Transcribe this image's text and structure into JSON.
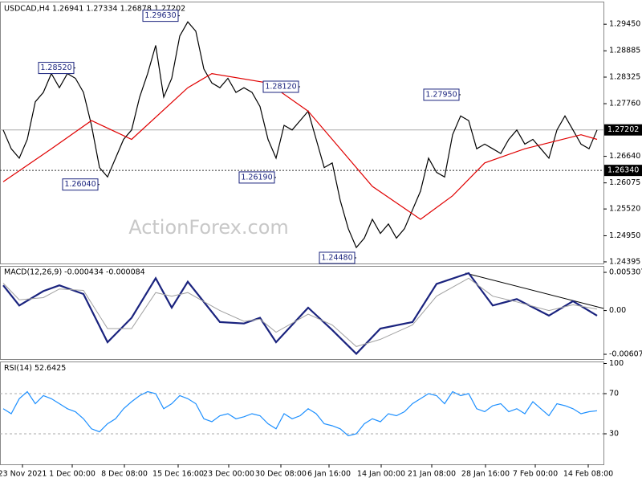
{
  "chart_data": [
    {
      "type": "line",
      "title": "USDCAD,H4 1.26941 1.27334 1.26878 1.27202",
      "watermark": "ActionForex.com",
      "xlim": [
        -0.4,
        74.8
      ],
      "ylim": [
        1.2436,
        1.2988
      ],
      "yticks": [
        {
          "value": 1.2945,
          "label": "1.29450"
        },
        1.28885,
        1.28325,
        {
          "value": 1.2776,
          "label": "1.27760"
        },
        {
          "value": 1.2664,
          "label": "1.26640"
        },
        1.26075,
        {
          "value": 1.2552,
          "label": "1.25520"
        },
        {
          "value": 1.2495,
          "label": "1.24950"
        },
        1.24395
      ],
      "price_lines": [
        {
          "value": 1.27202,
          "style": "solid"
        },
        {
          "value": 1.2634,
          "label": "1.26340",
          "style": "dotted"
        }
      ],
      "series": [
        {
          "color": "#000000",
          "values": [
            1.272,
            1.268,
            1.266,
            1.27,
            1.278,
            1.28,
            1.284,
            1.281,
            1.284,
            1.283,
            1.28,
            1.273,
            1.264,
            1.262,
            1.266,
            1.27,
            1.272,
            1.279,
            1.284,
            1.29,
            1.279,
            1.283,
            1.292,
            1.295,
            1.293,
            1.285,
            1.282,
            1.281,
            1.283,
            1.28,
            1.281,
            1.28,
            1.277,
            1.27,
            1.266,
            1.273,
            1.272,
            1.274,
            1.276,
            1.27,
            1.264,
            1.265,
            1.257,
            1.251,
            1.247,
            1.249,
            1.253,
            1.25,
            1.252,
            1.249,
            1.251,
            1.255,
            1.259,
            1.266,
            1.263,
            1.262,
            1.271,
            1.275,
            1.274,
            1.268,
            1.269,
            1.268,
            1.267,
            1.27,
            1.272,
            1.269,
            1.27,
            1.268,
            1.266,
            1.272,
            1.275,
            1.272,
            1.269,
            1.268,
            1.272
          ]
        },
        {
          "color": "#e00000",
          "x": [
            0,
            6,
            11,
            16,
            23,
            26,
            33,
            38,
            41,
            46,
            52,
            56,
            60,
            65,
            72,
            74
          ],
          "values": [
            1.261,
            1.268,
            1.274,
            1.27,
            1.281,
            1.284,
            1.282,
            1.276,
            1.27,
            1.26,
            1.253,
            1.258,
            1.265,
            1.268,
            1.271,
            1.27
          ]
        }
      ],
      "annotations": [
        {
          "label": "1.28520",
          "value": 1.2852,
          "x": 9
        },
        {
          "label": "1.29630",
          "value": 1.2963,
          "x": 22
        },
        {
          "label": "1.26040",
          "value": 1.2604,
          "x": 12
        },
        {
          "label": "1.28120",
          "value": 1.2812,
          "x": 37
        },
        {
          "label": "1.26190",
          "value": 1.2619,
          "x": 34
        },
        {
          "label": "1.27950",
          "value": 1.2795,
          "x": 57
        },
        {
          "label": "1.24480",
          "value": 1.2448,
          "x": 44
        }
      ]
    },
    {
      "type": "line",
      "title": "MACD(12,26,9) -0.000434 -0.000084",
      "xlim": [
        -0.4,
        74.8
      ],
      "ylim": [
        -0.00674,
        0.00598
      ],
      "yticks": [
        0.005307,
        {
          "value": 0,
          "label": "0.00"
        },
        -0.006074
      ],
      "series": [
        {
          "color": "#1a237e",
          "width": 2.2,
          "x": [
            0,
            2,
            5,
            7,
            10,
            13,
            16,
            19,
            21,
            23,
            27,
            30,
            32,
            34,
            38,
            41,
            44,
            47,
            51,
            54,
            58,
            61,
            64,
            68,
            71,
            74
          ],
          "values": [
            0.0035,
            0.0007,
            0.0027,
            0.0035,
            0.0023,
            -0.0044,
            -0.001,
            0.0045,
            0.0004,
            0.004,
            -0.0016,
            -0.0018,
            -0.001,
            -0.0044,
            0.0004,
            -0.0027,
            -0.006,
            -0.0025,
            -0.0016,
            0.0037,
            0.0052,
            0.0007,
            0.0016,
            -0.0007,
            0.0013,
            -0.0007
          ]
        },
        {
          "color": "#a0a0a0",
          "width": 1,
          "x": [
            0,
            2,
            5,
            7,
            10,
            13,
            16,
            19,
            21,
            23,
            27,
            30,
            32,
            34,
            38,
            41,
            44,
            47,
            51,
            54,
            58,
            61,
            64,
            68,
            71,
            74
          ],
          "values": [
            0.0038,
            0.0015,
            0.0018,
            0.003,
            0.0028,
            -0.0025,
            -0.0025,
            0.0025,
            0.002,
            0.0025,
            0,
            -0.0015,
            -0.0012,
            -0.003,
            -0.0005,
            -0.002,
            -0.005,
            -0.004,
            -0.002,
            0.002,
            0.0045,
            0.002,
            0.0012,
            0,
            0.0008,
            0.0002
          ]
        }
      ],
      "trendline": {
        "x": [
          57.6,
          74.8
        ],
        "values": [
          0.0052,
          0.0003
        ]
      }
    },
    {
      "type": "line",
      "title": "RSI(14) 52.6425",
      "xlim": [
        -0.4,
        74.8
      ],
      "ylim": [
        0,
        100
      ],
      "yticks": [
        100,
        70,
        30
      ],
      "grid_dashed": [
        70,
        30
      ],
      "xticks": [
        {
          "value": 2.4,
          "label": "23 Nov 2021"
        },
        {
          "value": 8.6,
          "label": "1 Dec 00:00"
        },
        {
          "value": 15.1,
          "label": "8 Dec 08:00"
        },
        {
          "value": 21.8,
          "label": "15 Dec 16:00"
        },
        {
          "value": 28.1,
          "label": "23 Dec 00:00"
        },
        {
          "value": 34.6,
          "label": "30 Dec 08:00"
        },
        {
          "value": 40.6,
          "label": "6 Jan 16:00"
        },
        {
          "value": 47.1,
          "label": "14 Jan 00:00"
        },
        {
          "value": 53.4,
          "label": "21 Jan 08:00"
        },
        {
          "value": 60.1,
          "label": "28 Jan 16:00"
        },
        {
          "value": 66.3,
          "label": "7 Feb 00:00"
        },
        {
          "value": 72.9,
          "label": "14 Feb 08:00"
        }
      ],
      "series": [
        {
          "color": "#1e90ff",
          "values": [
            55,
            50,
            65,
            72,
            60,
            68,
            65,
            60,
            55,
            52,
            45,
            35,
            32,
            40,
            45,
            55,
            62,
            68,
            72,
            70,
            55,
            60,
            68,
            65,
            60,
            45,
            42,
            48,
            50,
            45,
            47,
            50,
            48,
            40,
            35,
            50,
            45,
            48,
            55,
            50,
            40,
            38,
            35,
            28,
            30,
            40,
            45,
            42,
            50,
            48,
            52,
            60,
            65,
            70,
            68,
            60,
            72,
            68,
            70,
            55,
            52,
            58,
            60,
            52,
            55,
            50,
            62,
            55,
            48,
            60,
            58,
            55,
            50,
            52,
            53
          ]
        }
      ]
    }
  ]
}
